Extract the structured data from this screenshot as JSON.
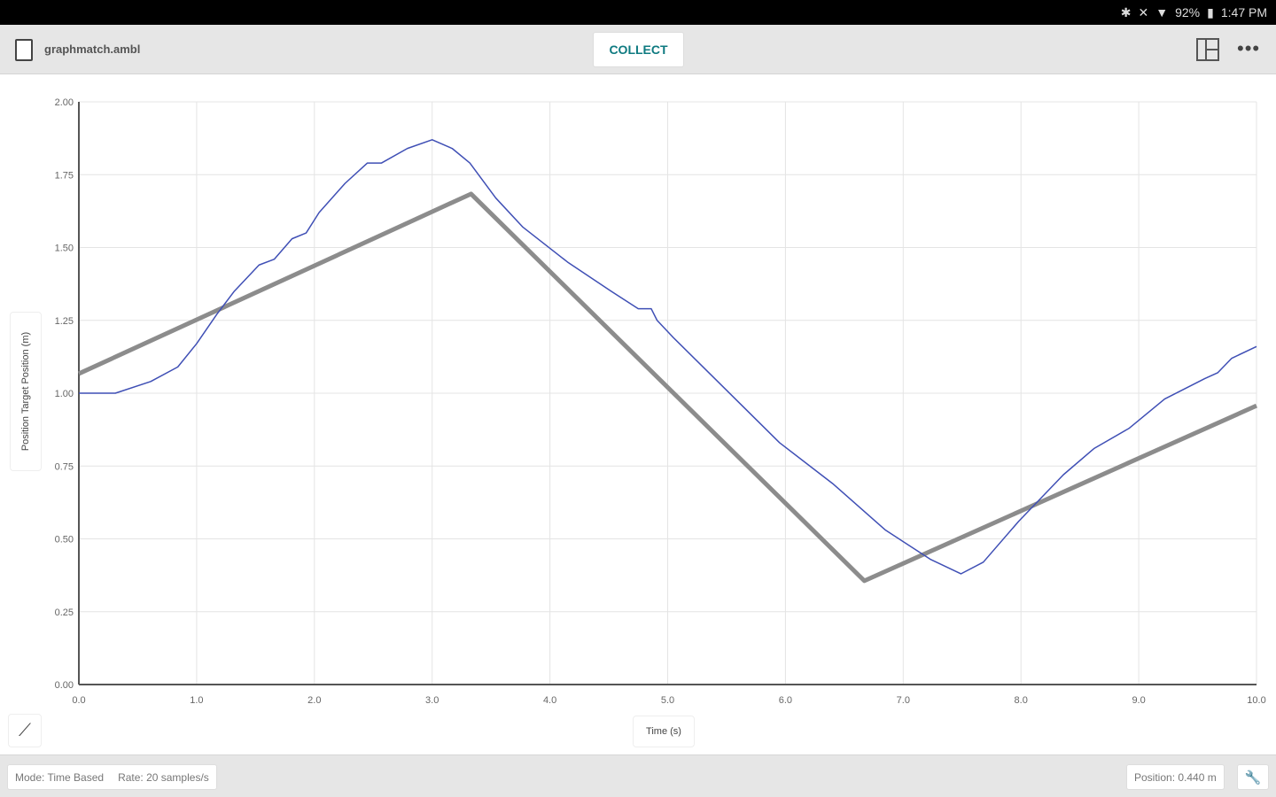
{
  "status_bar": {
    "icons": [
      "bluetooth-icon",
      "mute-icon",
      "wifi-icon"
    ],
    "battery": "92%",
    "time": "1:47 PM"
  },
  "toolbar": {
    "file_name": "graphmatch.ambl",
    "collect_label": "COLLECT",
    "icons": [
      "file-icon",
      "layout-icon",
      "more-icon"
    ]
  },
  "footer": {
    "mode": "Mode: Time Based",
    "rate": "Rate: 20 samples/s",
    "position": "Position: 0.440 m"
  },
  "chart_data": {
    "type": "line",
    "xlabel": "Time (s)",
    "ylabel": "Position Target Position (m)",
    "xlim": [
      0,
      10
    ],
    "ylim": [
      0,
      2
    ],
    "xticks": [
      "0.0",
      "1.0",
      "2.0",
      "3.0",
      "4.0",
      "5.0",
      "6.0",
      "7.0",
      "8.0",
      "9.0",
      "10.0"
    ],
    "yticks": [
      "0.00",
      "0.25",
      "0.50",
      "0.75",
      "1.00",
      "1.25",
      "1.50",
      "1.75",
      "2.00"
    ],
    "grid": true,
    "colors": {
      "position": "#3f4fb5",
      "target": "#8c8c8c"
    },
    "series": [
      {
        "id": "target",
        "x": [
          0,
          3.33,
          6.67,
          10
        ],
        "y": [
          1.067,
          1.684,
          0.356,
          0.957
        ]
      },
      {
        "id": "position",
        "x": [
          0,
          0.31,
          0.61,
          0.84,
          1.0,
          1.17,
          1.32,
          1.53,
          1.66,
          1.81,
          1.93,
          2.04,
          2.26,
          2.45,
          2.57,
          2.79,
          3.0,
          3.17,
          3.32,
          3.54,
          3.77,
          4.15,
          4.52,
          4.75,
          4.86,
          4.91,
          5.05,
          5.5,
          5.95,
          6.4,
          6.85,
          7.23,
          7.49,
          7.68,
          7.98,
          8.36,
          8.62,
          8.92,
          9.22,
          9.56,
          9.67,
          9.79,
          10
        ],
        "y": [
          1.0,
          1.0,
          1.04,
          1.09,
          1.17,
          1.27,
          1.35,
          1.44,
          1.46,
          1.53,
          1.55,
          1.62,
          1.72,
          1.79,
          1.79,
          1.84,
          1.87,
          1.84,
          1.79,
          1.67,
          1.57,
          1.45,
          1.35,
          1.29,
          1.29,
          1.25,
          1.19,
          1.01,
          0.83,
          0.69,
          0.53,
          0.43,
          0.38,
          0.42,
          0.56,
          0.72,
          0.81,
          0.88,
          0.98,
          1.05,
          1.07,
          1.12,
          1.16
        ]
      }
    ]
  }
}
